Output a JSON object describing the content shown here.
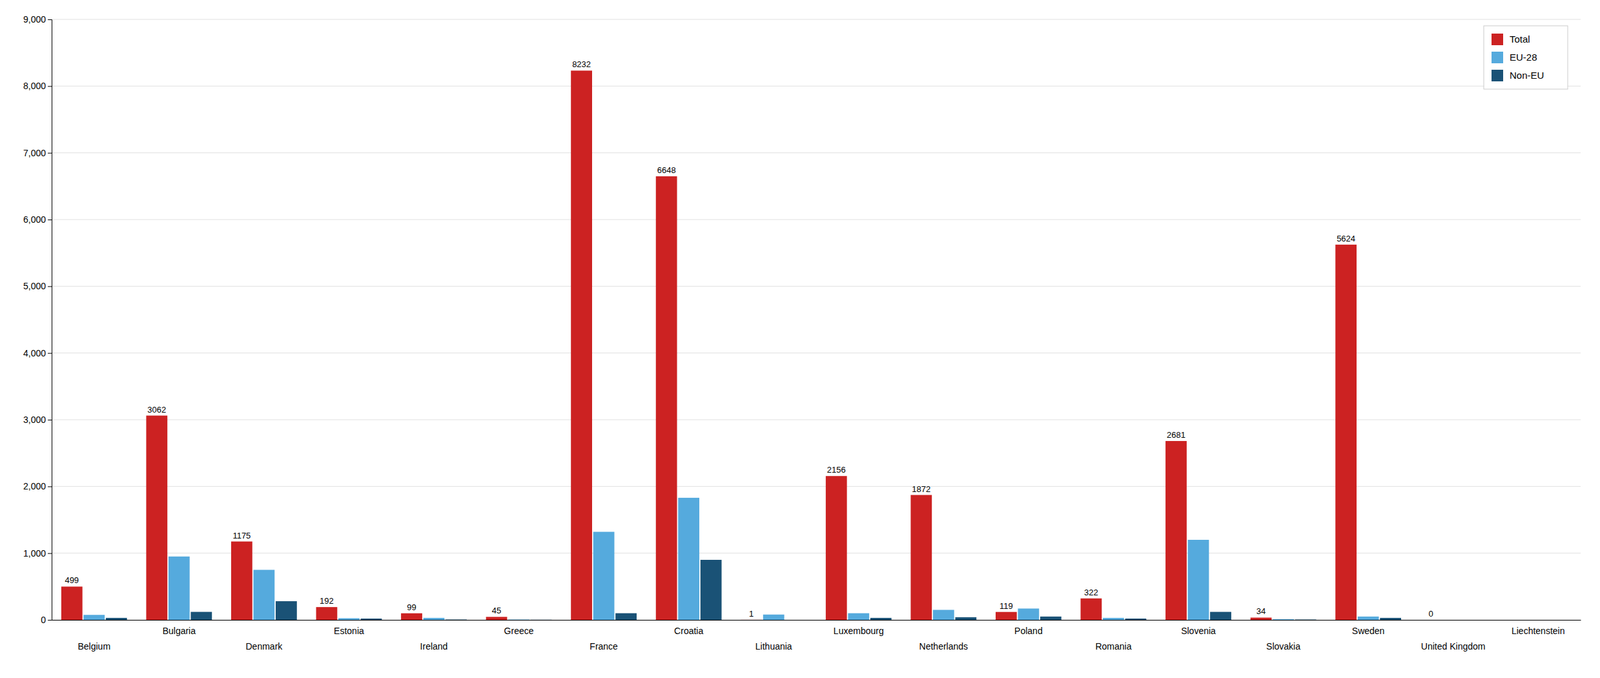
{
  "chart_data": {
    "type": "bar",
    "categories": [
      "Belgium",
      "Bulgaria",
      "Denmark",
      "Estonia",
      "Ireland",
      "Greece",
      "France",
      "Croatia",
      "Lithuania",
      "Luxembourg",
      "Netherlands",
      "Poland",
      "Romania",
      "Slovenia",
      "Slovakia",
      "Sweden",
      "United Kingdom",
      "Liechtenstein"
    ],
    "series": [
      {
        "name": "Total",
        "color": "#cc2222",
        "data_labels": true,
        "values": [
          499,
          3062,
          1175,
          192,
          99,
          45,
          8232,
          6648,
          1,
          2156,
          1872,
          119,
          322,
          2681,
          34,
          5624,
          0,
          0
        ],
        "value_labels": [
          "499",
          "3062",
          "1175",
          "192",
          "99",
          "45",
          "8232",
          "6648",
          "1",
          "2156",
          "1872",
          "119",
          "322",
          "2681",
          "34",
          "5624",
          "0",
          null
        ]
      },
      {
        "name": "EU-28",
        "color": "#55aadd",
        "values": [
          75,
          950,
          750,
          25,
          30,
          5,
          1320,
          1830,
          80,
          100,
          150,
          170,
          30,
          1200,
          10,
          50,
          0,
          0
        ]
      },
      {
        "name": "Non-EU",
        "color": "#1a5276",
        "values": [
          30,
          120,
          280,
          20,
          5,
          2,
          100,
          900,
          0,
          30,
          40,
          50,
          20,
          120,
          5,
          30,
          0,
          0
        ]
      }
    ],
    "ylim": [
      0,
      9000
    ],
    "yticks": [
      0,
      {
        "value": 1000,
        "label": "1,000"
      },
      {
        "value": 2000,
        "label": "2,000"
      },
      {
        "value": 3000,
        "label": "3,000"
      },
      {
        "value": 4000,
        "label": "4,000"
      },
      {
        "value": 5000,
        "label": "5,000"
      },
      {
        "value": 6000,
        "label": "6,000"
      },
      {
        "value": 7000,
        "label": "7,000"
      },
      {
        "value": 8000,
        "label": "8,000"
      },
      {
        "value": 9000,
        "label": "9,000"
      }
    ],
    "grid": true,
    "legend": "upper right"
  }
}
